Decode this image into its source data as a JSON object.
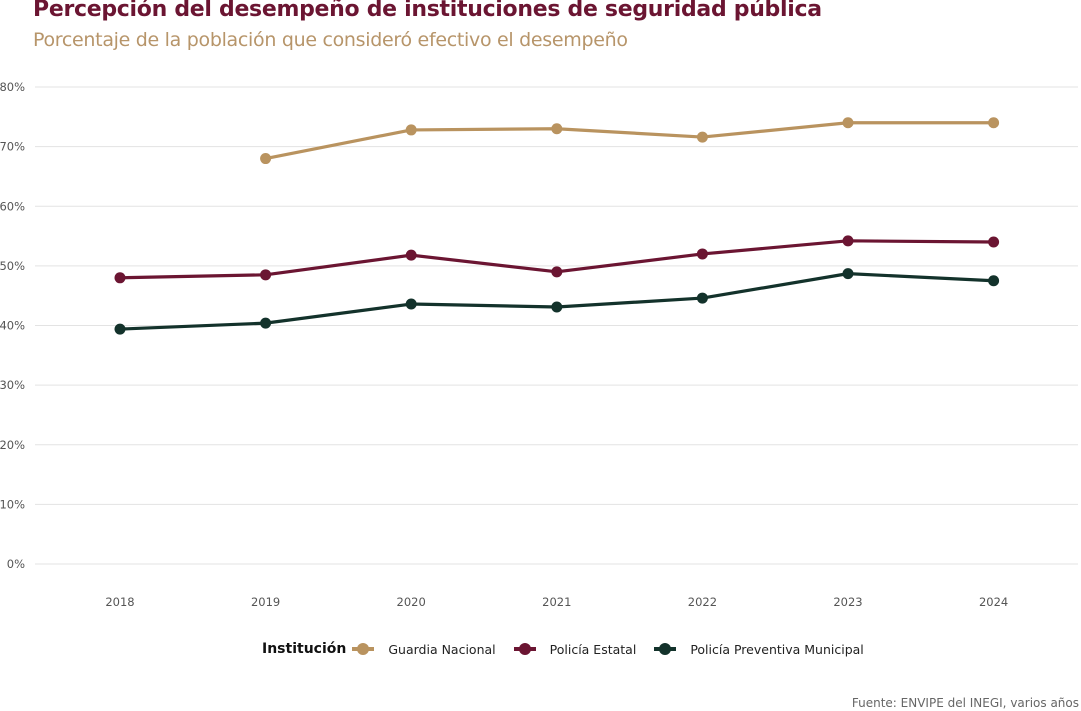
{
  "chart_data": {
    "type": "line",
    "title": "Percepción del desempeño de instituciones de seguridad pública",
    "subtitle": "Porcentaje de la población que consideró efectivo el desempeño",
    "xlabel": "",
    "ylabel": "",
    "x": [
      "2018",
      "2019",
      "2020",
      "2021",
      "2022",
      "2023",
      "2024"
    ],
    "ylim": [
      0,
      80
    ],
    "yticks": [
      0,
      10,
      20,
      30,
      40,
      50,
      60,
      70,
      80
    ],
    "ytick_labels": [
      "0%",
      "10%",
      "20%",
      "30%",
      "40%",
      "50%",
      "60%",
      "70%",
      "80%"
    ],
    "grid": true,
    "legend_title": "Institución",
    "legend_position": "bottom",
    "series": [
      {
        "name": "Guardia Nacional",
        "color": "#b9935f",
        "values": [
          null,
          68.0,
          72.8,
          73.0,
          71.6,
          74.0,
          74.0
        ]
      },
      {
        "name": "Policía Estatal",
        "color": "#6b1532",
        "values": [
          48.0,
          48.5,
          51.8,
          49.0,
          52.0,
          54.2,
          54.0
        ]
      },
      {
        "name": "Policía Preventiva Municipal",
        "color": "#13322b",
        "values": [
          39.4,
          40.4,
          43.6,
          43.1,
          44.6,
          48.7,
          47.5
        ]
      }
    ],
    "source": "Fuente: ENVIPE del INEGI, varios años"
  }
}
